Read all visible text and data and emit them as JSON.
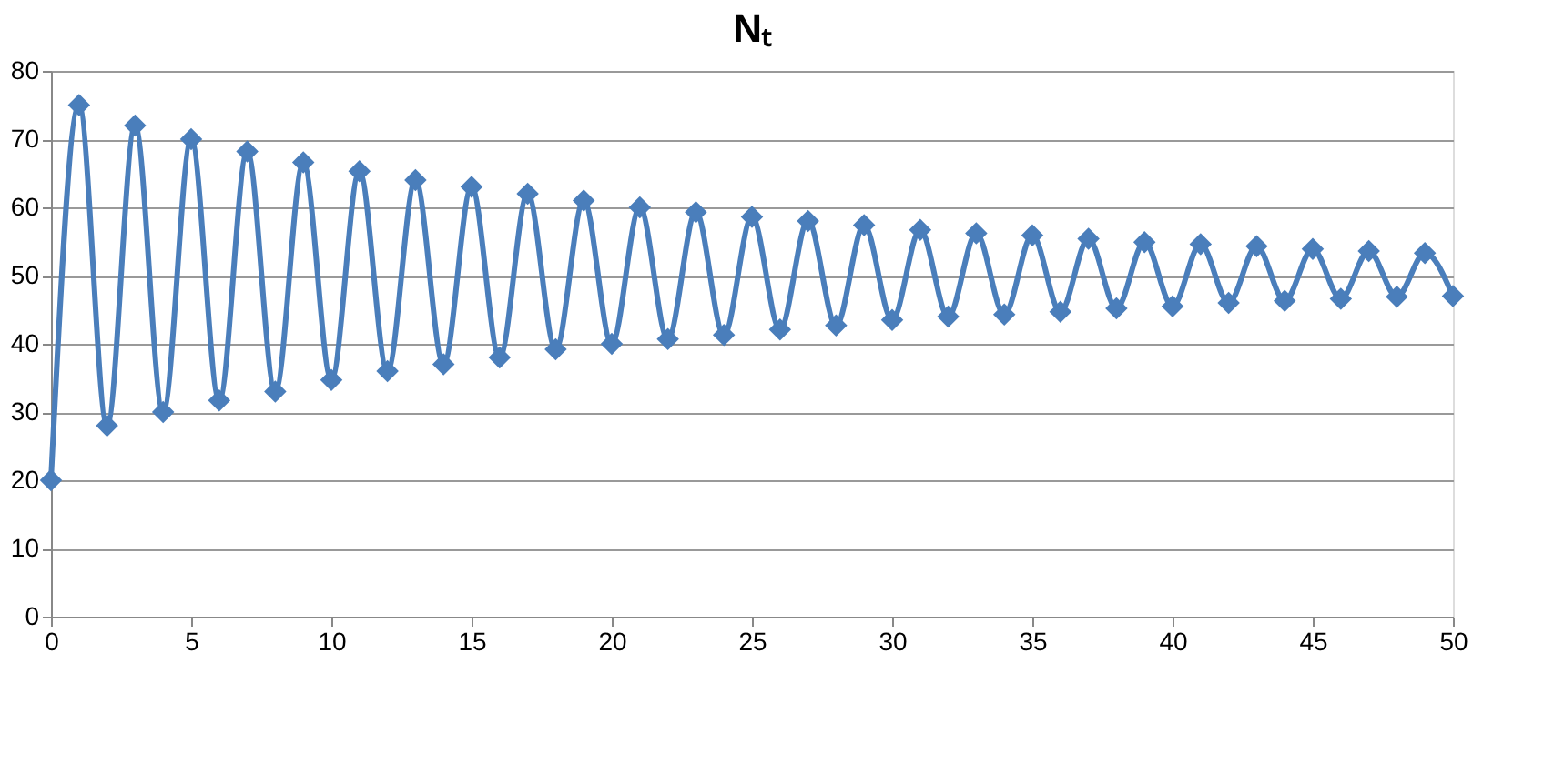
{
  "chart_data": {
    "type": "line",
    "title": "Nₜ",
    "x": [
      0,
      1,
      2,
      3,
      4,
      5,
      6,
      7,
      8,
      9,
      10,
      11,
      12,
      13,
      14,
      15,
      16,
      17,
      18,
      19,
      20,
      21,
      22,
      23,
      24,
      25,
      26,
      27,
      28,
      29,
      30,
      31,
      32,
      33,
      34,
      35,
      36,
      37,
      38,
      39,
      40,
      41,
      42,
      43,
      44,
      45,
      46,
      47,
      48,
      49,
      50
    ],
    "series": [
      {
        "color": "#4a7ebb",
        "values": [
          20,
          75,
          28,
          72,
          30,
          70,
          31.7,
          68.2,
          33,
          66.6,
          34.7,
          65.3,
          36,
          64,
          37,
          63,
          38,
          62,
          39.2,
          61,
          40,
          60,
          40.7,
          59.3,
          41.3,
          58.6,
          42.1,
          58,
          42.7,
          57.4,
          43.5,
          56.7,
          44,
          56.2,
          44.3,
          55.9,
          44.7,
          55.4,
          45.2,
          54.9,
          45.5,
          54.6,
          46,
          54.3,
          46.3,
          53.9,
          46.6,
          53.6,
          46.9,
          53.3,
          47
        ]
      }
    ],
    "xlim": [
      0,
      50
    ],
    "xticks": [
      0,
      5,
      10,
      15,
      20,
      25,
      30,
      35,
      40,
      45,
      50
    ],
    "ylim": [
      0,
      80
    ],
    "yticks": [
      0,
      10,
      20,
      30,
      40,
      50,
      60,
      70,
      80
    ],
    "grid": "y",
    "marker": "diamond",
    "line_style": "solid"
  }
}
